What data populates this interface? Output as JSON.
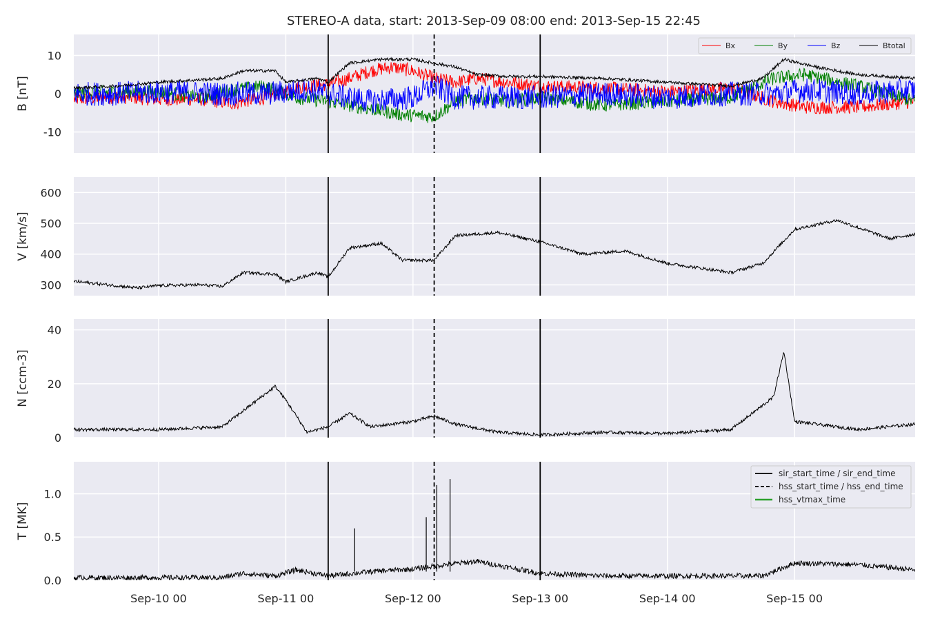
{
  "figure": {
    "title": "STEREO-A data, start: 2013-Sep-09 08:00  end: 2013-Sep-15 22:45",
    "background": "#eaeaf2",
    "grid_color": "#ffffff"
  },
  "chart_data": {
    "type": "line",
    "x_axis": {
      "range": [
        "2013-09-09 08:00",
        "2013-09-15 22:45"
      ],
      "ticks": [
        {
          "value": "2013-09-10 00:00",
          "label": "Sep-10 00"
        },
        {
          "value": "2013-09-11 00:00",
          "label": "Sep-11 00"
        },
        {
          "value": "2013-09-12 00:00",
          "label": "Sep-12 00"
        },
        {
          "value": "2013-09-13 00:00",
          "label": "Sep-13 00"
        },
        {
          "value": "2013-09-14 00:00",
          "label": "Sep-14 00"
        },
        {
          "value": "2013-09-15 00:00",
          "label": "Sep-15 00"
        }
      ]
    },
    "event_lines": [
      {
        "time": "2013-09-11 08:00",
        "style": "solid",
        "color": "#000000"
      },
      {
        "time": "2013-09-12 04:00",
        "style": "dashed",
        "color": "#000000"
      },
      {
        "time": "2013-09-13 00:00",
        "style": "solid",
        "color": "#000000"
      }
    ],
    "panels": [
      {
        "ylabel": "B [nT]",
        "ylim": [
          -15.5,
          15.5
        ],
        "yticks": [
          -10,
          0,
          10
        ],
        "legend": {
          "position": "top-right",
          "entries": [
            "Bx",
            "By",
            "Bz",
            "Btotal"
          ]
        },
        "series": [
          {
            "name": "Bx",
            "color": "#ff0000",
            "noise": 1.8,
            "points": [
              [
                "2013-09-09 08:00",
                -1.5
              ],
              [
                "2013-09-09 16:00",
                -0.8
              ],
              [
                "2013-09-10 00:00",
                -1.5
              ],
              [
                "2013-09-10 08:00",
                -1.5
              ],
              [
                "2013-09-10 14:00",
                -2.5
              ],
              [
                "2013-09-10 20:00",
                -1
              ],
              [
                "2013-09-11 02:00",
                1.5
              ],
              [
                "2013-09-11 08:00",
                2.5
              ],
              [
                "2013-09-11 12:00",
                4
              ],
              [
                "2013-09-11 16:00",
                6
              ],
              [
                "2013-09-11 20:00",
                7
              ],
              [
                "2013-09-12 00:00",
                6
              ],
              [
                "2013-09-12 04:00",
                4
              ],
              [
                "2013-09-12 08:00",
                3
              ],
              [
                "2013-09-12 12:00",
                4
              ],
              [
                "2013-09-12 18:00",
                3
              ],
              [
                "2013-09-13 00:00",
                2
              ],
              [
                "2013-09-13 12:00",
                1.5
              ],
              [
                "2013-09-14 00:00",
                0.5
              ],
              [
                "2013-09-14 12:00",
                1.5
              ],
              [
                "2013-09-14 20:00",
                -2
              ],
              [
                "2013-09-15 02:00",
                -3.5
              ],
              [
                "2013-09-15 12:00",
                -3.5
              ],
              [
                "2013-09-15 22:45",
                -2
              ]
            ]
          },
          {
            "name": "By",
            "color": "#008000",
            "noise": 1.8,
            "points": [
              [
                "2013-09-09 08:00",
                0
              ],
              [
                "2013-09-09 16:00",
                0.5
              ],
              [
                "2013-09-10 00:00",
                0.5
              ],
              [
                "2013-09-10 08:00",
                -1
              ],
              [
                "2013-09-10 14:00",
                1
              ],
              [
                "2013-09-10 20:00",
                2
              ],
              [
                "2013-09-11 02:00",
                -1
              ],
              [
                "2013-09-11 08:00",
                -2
              ],
              [
                "2013-09-11 12:00",
                -3
              ],
              [
                "2013-09-11 16:00",
                -4
              ],
              [
                "2013-09-11 22:00",
                -5.5
              ],
              [
                "2013-09-12 04:00",
                -6
              ],
              [
                "2013-09-12 08:00",
                -2
              ],
              [
                "2013-09-12 12:00",
                -1
              ],
              [
                "2013-09-12 18:00",
                -2
              ],
              [
                "2013-09-13 00:00",
                -1
              ],
              [
                "2013-09-13 12:00",
                -3
              ],
              [
                "2013-09-14 00:00",
                -2
              ],
              [
                "2013-09-14 12:00",
                -1
              ],
              [
                "2013-09-14 20:00",
                4
              ],
              [
                "2013-09-15 02:00",
                5
              ],
              [
                "2013-09-15 12:00",
                2
              ],
              [
                "2013-09-15 22:45",
                -2
              ]
            ]
          },
          {
            "name": "Bz",
            "color": "#0000ff",
            "noise": 3.2,
            "points": [
              [
                "2013-09-09 08:00",
                0
              ],
              [
                "2013-09-09 16:00",
                0
              ],
              [
                "2013-09-10 00:00",
                0.5
              ],
              [
                "2013-09-10 12:00",
                0
              ],
              [
                "2013-09-10 20:00",
                0
              ],
              [
                "2013-09-11 04:00",
                1
              ],
              [
                "2013-09-11 08:00",
                0
              ],
              [
                "2013-09-11 16:00",
                -2
              ],
              [
                "2013-09-12 00:00",
                -1
              ],
              [
                "2013-09-12 04:00",
                2
              ],
              [
                "2013-09-12 08:00",
                -1
              ],
              [
                "2013-09-12 18:00",
                -1
              ],
              [
                "2013-09-13 00:00",
                -1
              ],
              [
                "2013-09-13 12:00",
                0
              ],
              [
                "2013-09-14 00:00",
                -1
              ],
              [
                "2013-09-14 12:00",
                0
              ],
              [
                "2013-09-14 20:00",
                0
              ],
              [
                "2013-09-15 02:00",
                1
              ],
              [
                "2013-09-15 12:00",
                0
              ],
              [
                "2013-09-15 22:45",
                1
              ]
            ]
          },
          {
            "name": "Btotal",
            "color": "#000000",
            "noise": 0.4,
            "points": [
              [
                "2013-09-09 08:00",
                1.5
              ],
              [
                "2013-09-09 16:00",
                2
              ],
              [
                "2013-09-10 00:00",
                3
              ],
              [
                "2013-09-10 12:00",
                4
              ],
              [
                "2013-09-10 16:00",
                6
              ],
              [
                "2013-09-10 22:00",
                6
              ],
              [
                "2013-09-11 00:00",
                3
              ],
              [
                "2013-09-11 06:00",
                4
              ],
              [
                "2013-09-11 08:00",
                3
              ],
              [
                "2013-09-11 12:00",
                8
              ],
              [
                "2013-09-11 18:00",
                9
              ],
              [
                "2013-09-12 00:00",
                9
              ],
              [
                "2013-09-12 04:00",
                8
              ],
              [
                "2013-09-12 08:00",
                7
              ],
              [
                "2013-09-12 12:00",
                5
              ],
              [
                "2013-09-12 18:00",
                4.5
              ],
              [
                "2013-09-13 00:00",
                4.5
              ],
              [
                "2013-09-13 12:00",
                4
              ],
              [
                "2013-09-14 00:00",
                3
              ],
              [
                "2013-09-14 12:00",
                2
              ],
              [
                "2013-09-14 18:00",
                4
              ],
              [
                "2013-09-14 22:00",
                9
              ],
              [
                "2013-09-15 04:00",
                7
              ],
              [
                "2013-09-15 12:00",
                5
              ],
              [
                "2013-09-15 22:45",
                4
              ]
            ]
          }
        ]
      },
      {
        "ylabel": "V [km/s]",
        "ylim": [
          265,
          650
        ],
        "yticks": [
          300,
          400,
          500,
          600
        ],
        "series": [
          {
            "name": "",
            "color": "#000000",
            "noise": 5,
            "points": [
              [
                "2013-09-09 08:00",
                312
              ],
              [
                "2013-09-09 20:00",
                290
              ],
              [
                "2013-09-10 00:00",
                298
              ],
              [
                "2013-09-10 08:00",
                300
              ],
              [
                "2013-09-10 12:00",
                295
              ],
              [
                "2013-09-10 16:00",
                340
              ],
              [
                "2013-09-10 22:00",
                335
              ],
              [
                "2013-09-11 00:00",
                310
              ],
              [
                "2013-09-11 06:00",
                340
              ],
              [
                "2013-09-11 08:00",
                325
              ],
              [
                "2013-09-11 12:00",
                420
              ],
              [
                "2013-09-11 18:00",
                435
              ],
              [
                "2013-09-11 22:00",
                380
              ],
              [
                "2013-09-12 04:00",
                380
              ],
              [
                "2013-09-12 08:00",
                460
              ],
              [
                "2013-09-12 16:00",
                470
              ],
              [
                "2013-09-13 00:00",
                440
              ],
              [
                "2013-09-13 08:00",
                400
              ],
              [
                "2013-09-13 16:00",
                410
              ],
              [
                "2013-09-14 00:00",
                370
              ],
              [
                "2013-09-14 12:00",
                340
              ],
              [
                "2013-09-14 18:00",
                370
              ],
              [
                "2013-09-15 00:00",
                480
              ],
              [
                "2013-09-15 08:00",
                510
              ],
              [
                "2013-09-15 18:00",
                450
              ],
              [
                "2013-09-15 22:45",
                465
              ]
            ]
          }
        ]
      },
      {
        "ylabel": "N [ccm-3]",
        "ylim": [
          0,
          44
        ],
        "yticks": [
          0,
          20,
          40
        ],
        "series": [
          {
            "name": "",
            "color": "#000000",
            "noise": 0.6,
            "points": [
              [
                "2013-09-09 08:00",
                3
              ],
              [
                "2013-09-10 00:00",
                3
              ],
              [
                "2013-09-10 12:00",
                4
              ],
              [
                "2013-09-10 16:00",
                10
              ],
              [
                "2013-09-10 20:00",
                16
              ],
              [
                "2013-09-10 22:00",
                19
              ],
              [
                "2013-09-11 00:00",
                14
              ],
              [
                "2013-09-11 04:00",
                2
              ],
              [
                "2013-09-11 08:00",
                4
              ],
              [
                "2013-09-11 12:00",
                9
              ],
              [
                "2013-09-11 16:00",
                4
              ],
              [
                "2013-09-12 00:00",
                6
              ],
              [
                "2013-09-12 04:00",
                8
              ],
              [
                "2013-09-12 08:00",
                5
              ],
              [
                "2013-09-12 16:00",
                2
              ],
              [
                "2013-09-13 00:00",
                1
              ],
              [
                "2013-09-13 12:00",
                2
              ],
              [
                "2013-09-14 00:00",
                1.5
              ],
              [
                "2013-09-14 12:00",
                3
              ],
              [
                "2013-09-14 20:00",
                15
              ],
              [
                "2013-09-14 22:00",
                32
              ],
              [
                "2013-09-15 00:00",
                6
              ],
              [
                "2013-09-15 12:00",
                3
              ],
              [
                "2013-09-15 22:45",
                5
              ]
            ]
          }
        ]
      },
      {
        "ylabel": "T [MK]",
        "ylim": [
          0,
          1.37
        ],
        "yticks": [
          0.0,
          0.5,
          1.0
        ],
        "ytick_labels": [
          "0.0",
          "0.5",
          "1.0"
        ],
        "legend": {
          "position": "top-right",
          "entries": [
            {
              "label": "sir_start_time / sir_end_time",
              "color": "#000000",
              "style": "solid"
            },
            {
              "label": "hss_start_time / hss_end_time",
              "color": "#000000",
              "style": "dashed"
            },
            {
              "label": "hss_vtmax_time",
              "color": "#2ca02c",
              "style": "solid"
            }
          ]
        },
        "spikes": [
          [
            "2013-09-11 13:00",
            0.6
          ],
          [
            "2013-09-12 02:30",
            0.73
          ],
          [
            "2013-09-12 04:30",
            1.1
          ],
          [
            "2013-09-12 07:00",
            1.17
          ]
        ],
        "series": [
          {
            "name": "",
            "color": "#000000",
            "noise": 0.03,
            "points": [
              [
                "2013-09-09 08:00",
                0.03
              ],
              [
                "2013-09-10 12:00",
                0.03
              ],
              [
                "2013-09-10 16:00",
                0.08
              ],
              [
                "2013-09-10 22:00",
                0.05
              ],
              [
                "2013-09-11 02:00",
                0.12
              ],
              [
                "2013-09-11 08:00",
                0.05
              ],
              [
                "2013-09-11 16:00",
                0.1
              ],
              [
                "2013-09-12 00:00",
                0.13
              ],
              [
                "2013-09-12 06:00",
                0.18
              ],
              [
                "2013-09-12 12:00",
                0.22
              ],
              [
                "2013-09-12 18:00",
                0.15
              ],
              [
                "2013-09-13 00:00",
                0.08
              ],
              [
                "2013-09-13 12:00",
                0.05
              ],
              [
                "2013-09-14 00:00",
                0.05
              ],
              [
                "2013-09-14 18:00",
                0.05
              ],
              [
                "2013-09-15 00:00",
                0.2
              ],
              [
                "2013-09-15 12:00",
                0.18
              ],
              [
                "2013-09-15 22:45",
                0.12
              ]
            ]
          }
        ]
      }
    ]
  }
}
